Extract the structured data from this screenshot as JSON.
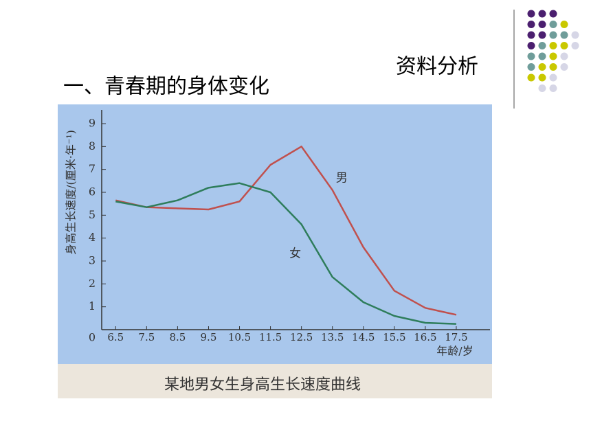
{
  "slide": {
    "heading": "资料分析",
    "title": "一、青春期的身体变化"
  },
  "chart_data": {
    "type": "line",
    "title": "某地男女生身高生长速度曲线",
    "x_label": "年龄/岁",
    "y_label": "身高生长速度/(厘米·年⁻¹)",
    "x": [
      6.5,
      7.5,
      8.5,
      9.5,
      10.5,
      11.5,
      12.5,
      13.5,
      14.5,
      15.5,
      16.5,
      17.5
    ],
    "series": [
      {
        "name": "男",
        "color": "#c0504d",
        "values": [
          5.65,
          5.35,
          5.3,
          5.25,
          5.6,
          7.2,
          8.0,
          6.1,
          3.6,
          1.7,
          0.95,
          0.65
        ]
      },
      {
        "name": "女",
        "color": "#2e7d5b",
        "values": [
          5.6,
          5.35,
          5.65,
          6.2,
          6.4,
          6.0,
          4.6,
          2.3,
          1.2,
          0.6,
          0.3,
          0.25
        ]
      }
    ],
    "xlim": [
      6.05,
      18.5
    ],
    "ylim": [
      0,
      9
    ],
    "xticks": [
      6.5,
      7.5,
      8.5,
      9.5,
      10.5,
      11.5,
      12.5,
      13.5,
      14.5,
      15.5,
      16.5,
      17.5
    ],
    "yticks": [
      0,
      1,
      2,
      3,
      4,
      5,
      6,
      7,
      8,
      9
    ]
  }
}
